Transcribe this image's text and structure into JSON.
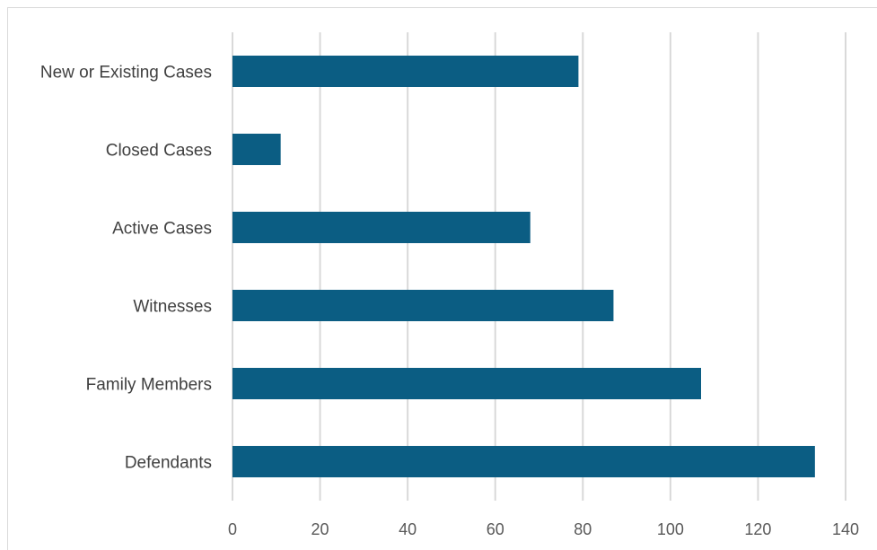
{
  "chart_data": {
    "type": "bar",
    "orientation": "horizontal",
    "categories": [
      "New or Existing Cases",
      "Closed Cases",
      "Active Cases",
      "Witnesses",
      "Family Members",
      "Defendants"
    ],
    "values": [
      79,
      11,
      68,
      87,
      107,
      133
    ],
    "xlim": [
      0,
      140
    ],
    "xticks": [
      0,
      20,
      40,
      60,
      80,
      100,
      120,
      140
    ],
    "grid": "vertical",
    "legend": "none",
    "bar_color": "#0b5d83",
    "grid_color": "#d9d9d9",
    "title": "",
    "xlabel": "",
    "ylabel": ""
  }
}
